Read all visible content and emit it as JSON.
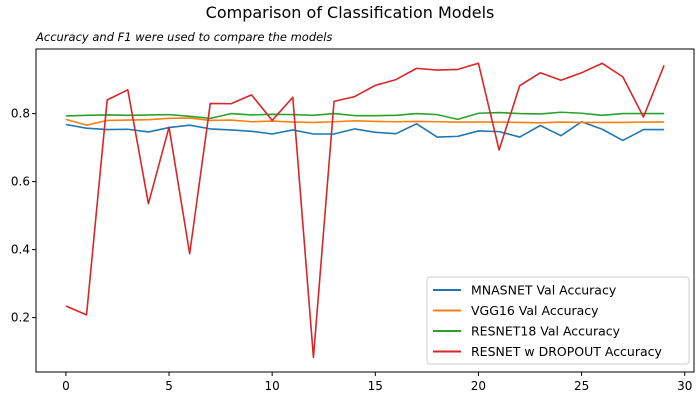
{
  "chart_data": {
    "type": "line",
    "title": "Comparison of Classification Models",
    "subtitle": "Accuracy and F1 were used to compare the models",
    "xlabel": "",
    "ylabel": "",
    "xlim": [
      -1.45,
      30.45
    ],
    "ylim": [
      0.04,
      0.99
    ],
    "xticks": [
      0,
      5,
      10,
      15,
      20,
      25,
      30
    ],
    "yticks": [
      0.2,
      0.4,
      0.6,
      0.8
    ],
    "grid": false,
    "legend_position": "lower-right",
    "x": [
      0,
      1,
      2,
      3,
      4,
      5,
      6,
      7,
      8,
      9,
      10,
      11,
      12,
      13,
      14,
      15,
      16,
      17,
      18,
      19,
      20,
      21,
      22,
      23,
      24,
      25,
      26,
      27,
      28,
      29
    ],
    "series": [
      {
        "name": "MNASNET Val Accuracy",
        "color": "#1f77b4",
        "values": [
          0.768,
          0.757,
          0.753,
          0.754,
          0.746,
          0.759,
          0.766,
          0.755,
          0.752,
          0.748,
          0.74,
          0.752,
          0.74,
          0.74,
          0.755,
          0.745,
          0.741,
          0.77,
          0.731,
          0.733,
          0.749,
          0.747,
          0.731,
          0.765,
          0.735,
          0.776,
          0.754,
          0.721,
          0.753,
          0.753
        ]
      },
      {
        "name": "VGG16 Val Accuracy",
        "color": "#ff7f0e",
        "values": [
          0.783,
          0.766,
          0.78,
          0.781,
          0.782,
          0.786,
          0.787,
          0.78,
          0.781,
          0.776,
          0.778,
          0.775,
          0.774,
          0.776,
          0.779,
          0.777,
          0.776,
          0.777,
          0.776,
          0.775,
          0.775,
          0.775,
          0.774,
          0.773,
          0.775,
          0.774,
          0.774,
          0.774,
          0.775,
          0.775
        ]
      },
      {
        "name": "RESNET18 Val Accuracy",
        "color": "#2ca02c",
        "values": [
          0.793,
          0.795,
          0.796,
          0.795,
          0.796,
          0.797,
          0.792,
          0.786,
          0.8,
          0.796,
          0.798,
          0.797,
          0.795,
          0.8,
          0.794,
          0.794,
          0.795,
          0.8,
          0.797,
          0.783,
          0.801,
          0.803,
          0.8,
          0.799,
          0.804,
          0.801,
          0.795,
          0.8,
          0.8,
          0.8
        ]
      },
      {
        "name": "RESNET w DROPOUT Accuracy",
        "color": "#d62728",
        "values": [
          0.234,
          0.208,
          0.84,
          0.87,
          0.535,
          0.76,
          0.388,
          0.83,
          0.829,
          0.855,
          0.78,
          0.848,
          0.083,
          0.836,
          0.85,
          0.883,
          0.9,
          0.933,
          0.928,
          0.93,
          0.948,
          0.693,
          0.882,
          0.92,
          0.898,
          0.92,
          0.948,
          0.908,
          0.79,
          0.942
        ]
      }
    ]
  }
}
